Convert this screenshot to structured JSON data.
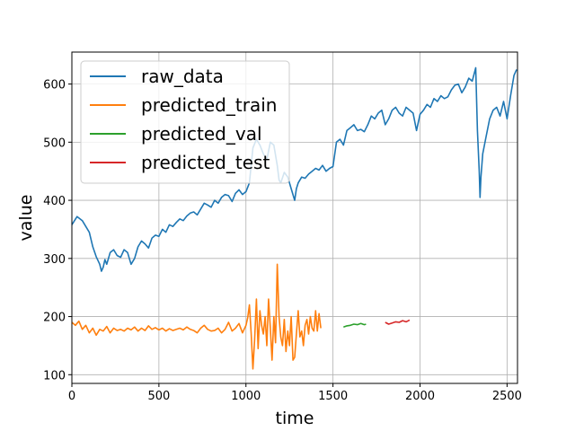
{
  "chart_data": {
    "type": "line",
    "title": "",
    "xlabel": "time",
    "ylabel": "value",
    "xlim": [
      0,
      2560
    ],
    "ylim": [
      85,
      655
    ],
    "xticks": [
      0,
      500,
      1000,
      1500,
      2000,
      2500
    ],
    "yticks": [
      100,
      200,
      300,
      400,
      500,
      600
    ],
    "grid": true,
    "legend_position": "top-left",
    "series": [
      {
        "name": "raw_data",
        "color": "#1f77b4",
        "x": [
          0,
          30,
          60,
          80,
          100,
          120,
          140,
          160,
          170,
          180,
          190,
          200,
          220,
          240,
          260,
          280,
          300,
          320,
          340,
          360,
          380,
          400,
          420,
          440,
          460,
          480,
          500,
          520,
          540,
          560,
          580,
          600,
          620,
          640,
          660,
          680,
          700,
          720,
          740,
          760,
          780,
          800,
          820,
          840,
          860,
          880,
          900,
          920,
          940,
          960,
          980,
          1000,
          1020,
          1040,
          1060,
          1080,
          1100,
          1120,
          1140,
          1160,
          1180,
          1190,
          1200,
          1220,
          1240,
          1260,
          1280,
          1290,
          1300,
          1320,
          1340,
          1360,
          1380,
          1400,
          1420,
          1440,
          1460,
          1480,
          1500,
          1520,
          1540,
          1560,
          1580,
          1600,
          1620,
          1640,
          1660,
          1680,
          1700,
          1720,
          1740,
          1760,
          1780,
          1800,
          1820,
          1840,
          1860,
          1880,
          1900,
          1920,
          1940,
          1960,
          1980,
          2000,
          2020,
          2040,
          2060,
          2080,
          2100,
          2120,
          2140,
          2160,
          2180,
          2200,
          2220,
          2240,
          2260,
          2280,
          2300,
          2320,
          2330,
          2340,
          2345,
          2350,
          2360,
          2380,
          2400,
          2420,
          2440,
          2460,
          2480,
          2500,
          2520,
          2540,
          2555
        ],
        "values": [
          358,
          372,
          365,
          355,
          345,
          320,
          303,
          290,
          278,
          285,
          298,
          290,
          310,
          315,
          305,
          302,
          315,
          310,
          290,
          300,
          320,
          330,
          325,
          318,
          335,
          340,
          338,
          350,
          345,
          358,
          355,
          362,
          368,
          365,
          373,
          378,
          380,
          375,
          385,
          395,
          392,
          388,
          400,
          395,
          405,
          410,
          408,
          398,
          412,
          418,
          410,
          415,
          430,
          490,
          505,
          495,
          480,
          470,
          500,
          495,
          460,
          435,
          430,
          448,
          440,
          420,
          400,
          420,
          430,
          440,
          438,
          445,
          450,
          455,
          452,
          460,
          450,
          455,
          458,
          500,
          505,
          495,
          520,
          525,
          530,
          520,
          522,
          518,
          530,
          545,
          540,
          550,
          555,
          530,
          540,
          555,
          560,
          550,
          545,
          560,
          555,
          550,
          520,
          548,
          555,
          565,
          560,
          575,
          570,
          580,
          575,
          578,
          590,
          598,
          600,
          585,
          595,
          610,
          605,
          628,
          520,
          450,
          405,
          440,
          480,
          510,
          540,
          555,
          560,
          545,
          570,
          540,
          580,
          615,
          625
        ]
      },
      {
        "name": "predicted_train",
        "color": "#ff7f0e",
        "x": [
          0,
          20,
          40,
          60,
          80,
          100,
          120,
          140,
          160,
          180,
          200,
          220,
          240,
          260,
          280,
          300,
          320,
          340,
          360,
          380,
          400,
          420,
          440,
          460,
          480,
          500,
          520,
          540,
          560,
          580,
          600,
          620,
          640,
          660,
          680,
          700,
          720,
          740,
          760,
          780,
          800,
          820,
          840,
          860,
          880,
          900,
          920,
          940,
          960,
          980,
          1000,
          1010,
          1020,
          1030,
          1040,
          1050,
          1060,
          1070,
          1080,
          1090,
          1100,
          1110,
          1120,
          1130,
          1140,
          1150,
          1160,
          1170,
          1180,
          1190,
          1200,
          1210,
          1220,
          1230,
          1240,
          1250,
          1260,
          1270,
          1280,
          1290,
          1300,
          1310,
          1320,
          1330,
          1340,
          1350,
          1360,
          1370,
          1380,
          1390,
          1400,
          1410,
          1420,
          1430
        ],
        "values": [
          190,
          185,
          192,
          178,
          185,
          172,
          180,
          168,
          178,
          175,
          183,
          172,
          180,
          176,
          178,
          175,
          180,
          177,
          182,
          175,
          180,
          176,
          184,
          178,
          181,
          177,
          180,
          175,
          179,
          176,
          178,
          180,
          177,
          182,
          178,
          176,
          172,
          180,
          185,
          178,
          175,
          176,
          180,
          172,
          178,
          190,
          175,
          180,
          188,
          172,
          185,
          198,
          220,
          170,
          110,
          160,
          230,
          145,
          210,
          185,
          170,
          200,
          150,
          230,
          180,
          125,
          200,
          155,
          290,
          200,
          165,
          150,
          195,
          140,
          175,
          150,
          200,
          125,
          130,
          170,
          210,
          165,
          175,
          150,
          185,
          195,
          170,
          200,
          180,
          175,
          210,
          175,
          205,
          180
        ]
      },
      {
        "name": "predicted_val",
        "color": "#2ca02c",
        "x": [
          1560,
          1580,
          1600,
          1620,
          1640,
          1660,
          1680,
          1690
        ],
        "values": [
          182,
          184,
          185,
          187,
          186,
          188,
          186,
          187
        ]
      },
      {
        "name": "predicted_test",
        "color": "#d62728",
        "x": [
          1800,
          1820,
          1840,
          1860,
          1880,
          1900,
          1920,
          1940
        ],
        "values": [
          190,
          187,
          189,
          191,
          190,
          193,
          191,
          194
        ]
      }
    ]
  }
}
